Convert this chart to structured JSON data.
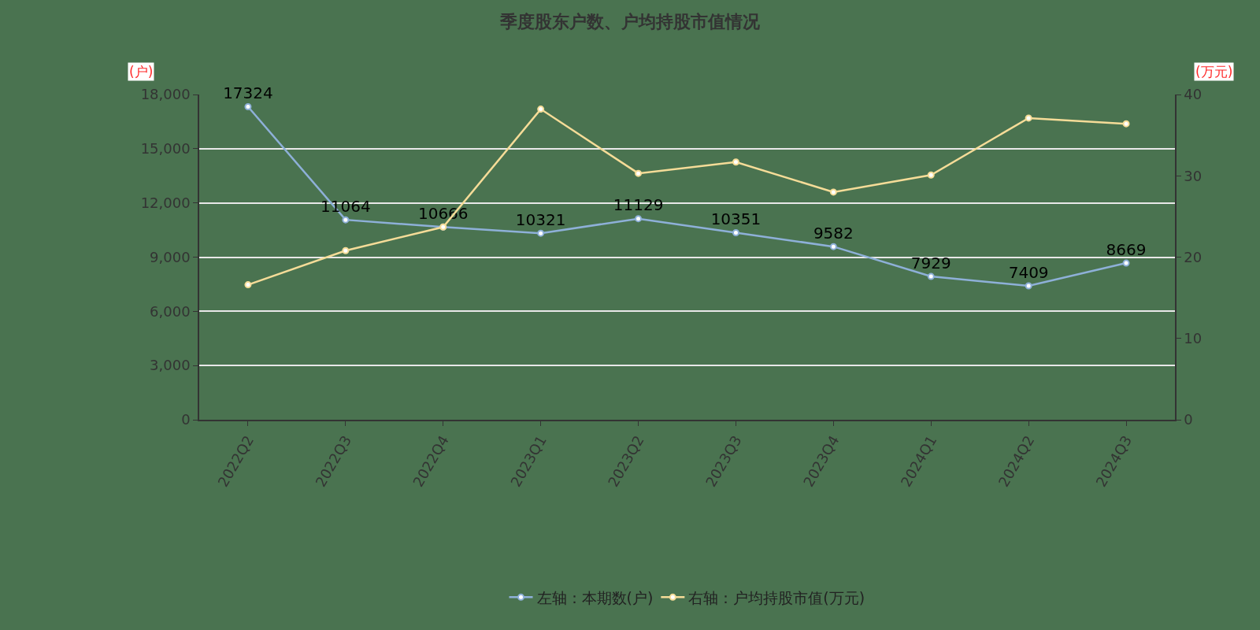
{
  "chart_data": {
    "type": "line",
    "title": "季度股东户数、户均持股市值情况",
    "ylabel": "(户)",
    "y2label": "(万元)",
    "categories": [
      "2022Q2",
      "2022Q3",
      "2022Q4",
      "2023Q1",
      "2023Q2",
      "2023Q3",
      "2023Q4",
      "2024Q1",
      "2024Q2",
      "2024Q3"
    ],
    "series": [
      {
        "name": "左轴：本期数(户)",
        "color": "#8eb0d8",
        "values": [
          17324,
          11064,
          10666,
          10321,
          11129,
          10351,
          9582,
          7929,
          7409,
          8669
        ],
        "value_labels": [
          "17324",
          "11064",
          "10666",
          "10321",
          "11129",
          "10351",
          "9582",
          "7929",
          "7409",
          "8669"
        ]
      },
      {
        "name": "右轴：户均持股市值(万元)",
        "color": "#f5dc98",
        "axis": "y2",
        "values": [
          16.6,
          20.8,
          23.7,
          38.2,
          30.3,
          31.7,
          28.0,
          30.1,
          37.1,
          36.4
        ]
      }
    ],
    "ylim": [
      0,
      18000
    ],
    "yticks": [
      {
        "value": 0,
        "label": "0"
      },
      {
        "value": 3000,
        "label": "3,000"
      },
      {
        "value": 6000,
        "label": "6,000"
      },
      {
        "value": 9000,
        "label": "9,000"
      },
      {
        "value": 12000,
        "label": "12,000"
      },
      {
        "value": 15000,
        "label": "15,000"
      },
      {
        "value": 18000,
        "label": "18,000"
      }
    ],
    "y2lim": [
      0,
      40
    ],
    "y2ticks": [
      0,
      10,
      20,
      30,
      40
    ],
    "grid": "y",
    "legend": "bottom",
    "marker": "circle",
    "line_style": "solid"
  }
}
